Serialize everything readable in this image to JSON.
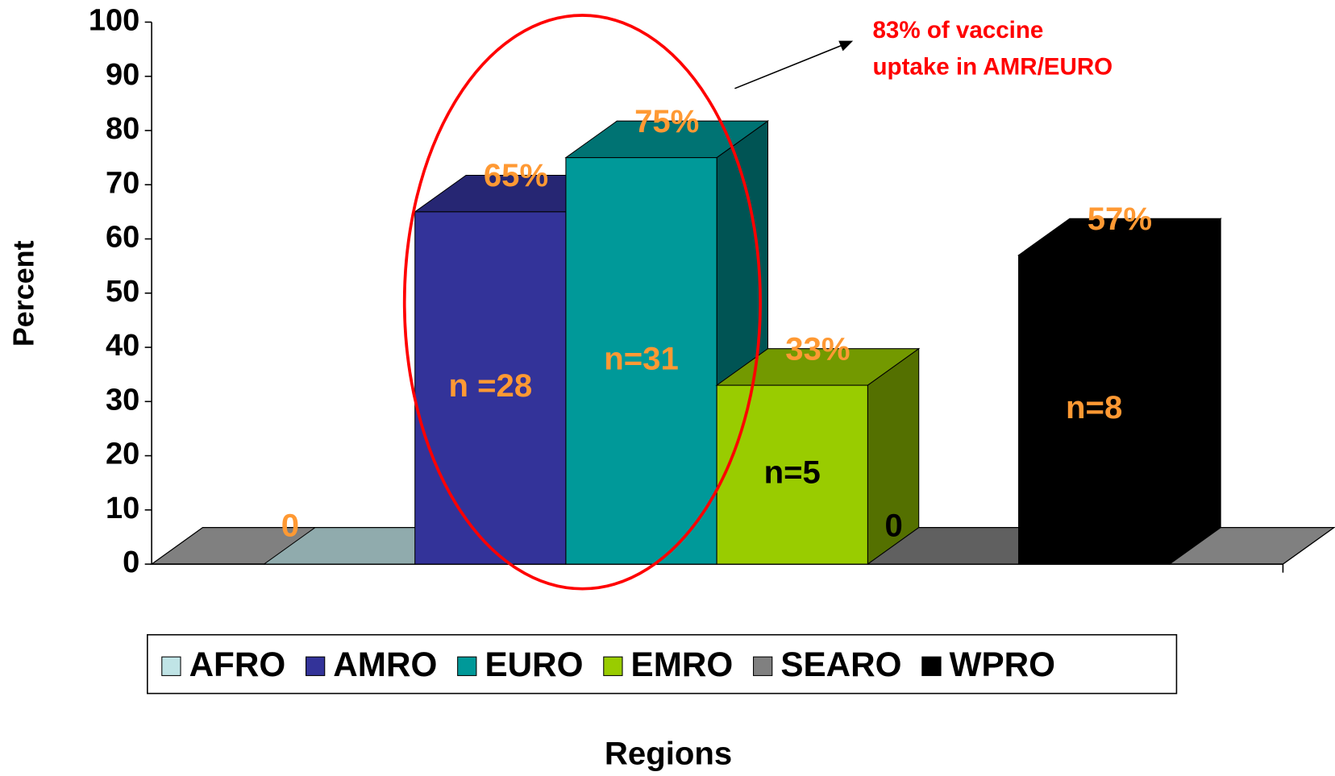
{
  "chart_data": {
    "type": "bar3d",
    "y_label": "Percent",
    "x_label": "Regions",
    "annotation": [
      "83% of vaccine",
      "uptake in AMR/EURO"
    ],
    "ylim": [
      0,
      100
    ],
    "yticks": [
      0,
      10,
      20,
      30,
      40,
      50,
      60,
      70,
      80,
      90,
      100
    ],
    "series": [
      {
        "name": "AFRO",
        "color": "#c0e4e6",
        "values": [
          0
        ],
        "value_labels": [
          "0"
        ],
        "label_color": "#ff9933"
      },
      {
        "name": "AMRO",
        "color": "#333399",
        "values": [
          65
        ],
        "value_labels": [
          "65%"
        ],
        "label_color": "#ff9933",
        "n_label": "n =28",
        "n_label_color": "#ff9933"
      },
      {
        "name": "EURO",
        "color": "#009999",
        "values": [
          75
        ],
        "value_labels": [
          "75%"
        ],
        "label_color": "#ff9933",
        "n_label": "n=31",
        "n_label_color": "#ff9933"
      },
      {
        "name": "EMRO",
        "color": "#99cc00",
        "values": [
          33
        ],
        "value_labels": [
          "33%"
        ],
        "label_color": "#ff9933",
        "n_label": "n=5",
        "n_label_color": "#000000"
      },
      {
        "name": "SEARO",
        "color": "#808080",
        "values": [
          0
        ],
        "value_labels": [
          "0"
        ],
        "label_color": "#000000"
      },
      {
        "name": "WPRO",
        "color": "#000000",
        "values": [
          57
        ],
        "value_labels": [
          "57%"
        ],
        "label_color": "#ff9933",
        "n_label": "n=8",
        "n_label_color": "#ff9933"
      }
    ],
    "legend": "bottom"
  }
}
